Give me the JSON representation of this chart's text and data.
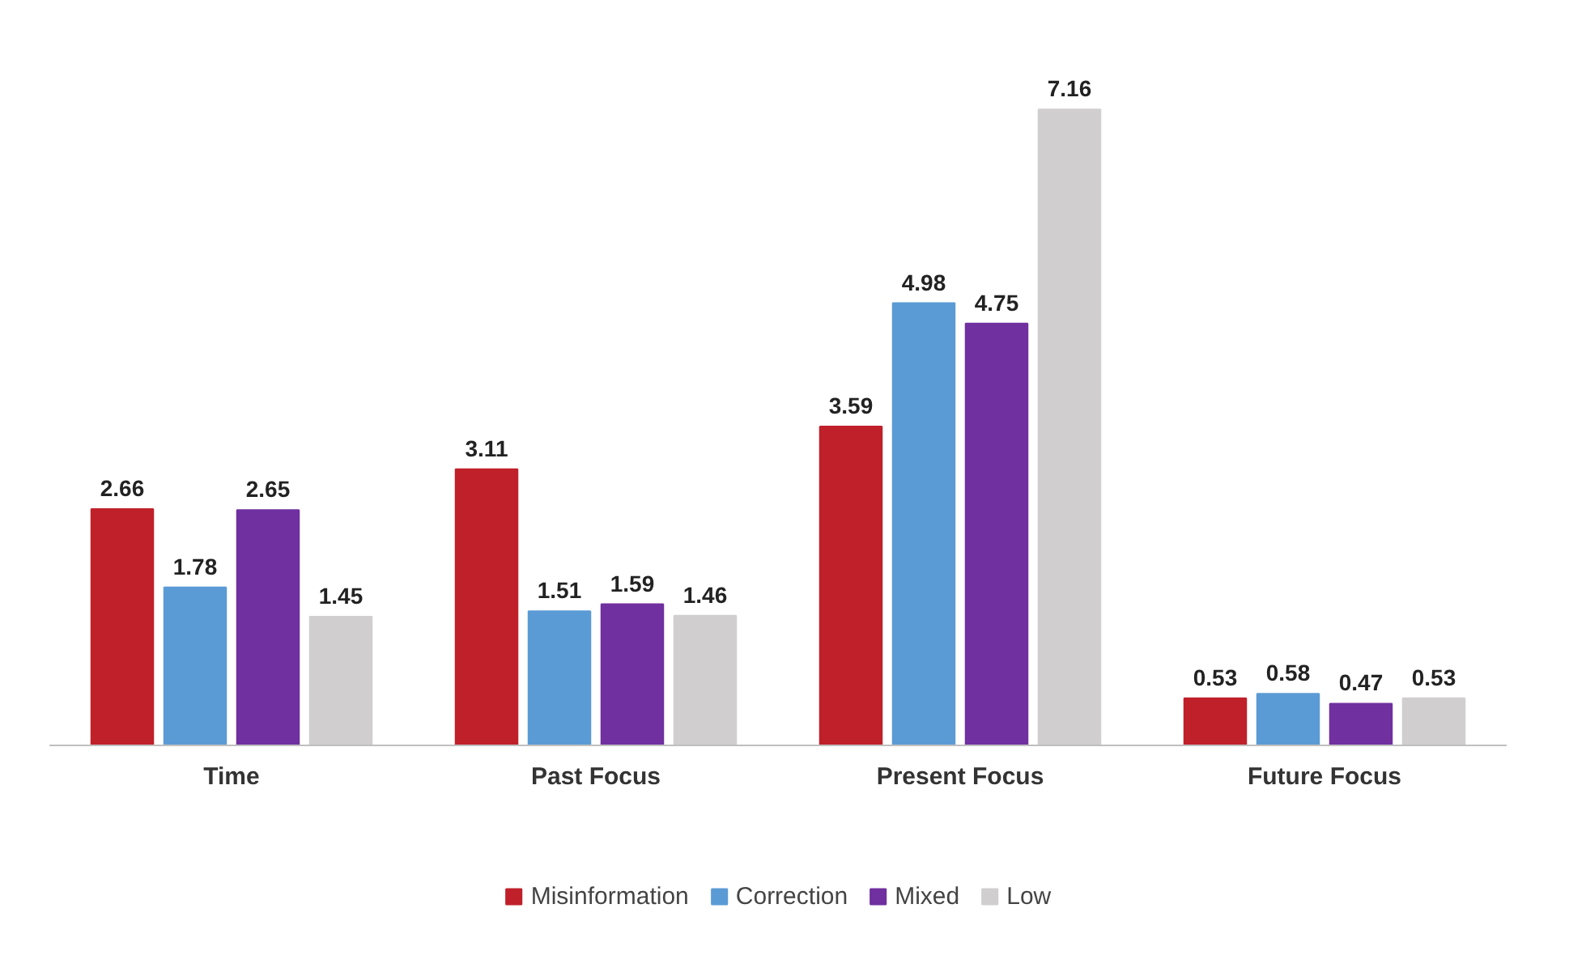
{
  "chart_data": {
    "type": "bar",
    "categories": [
      "Time",
      "Past Focus",
      "Present Focus",
      "Future Focus"
    ],
    "series": [
      {
        "name": "Misinformation",
        "color": "#c0202a",
        "values": [
          2.66,
          3.11,
          3.59,
          0.53
        ]
      },
      {
        "name": "Correction",
        "color": "#5b9bd5",
        "values": [
          1.78,
          1.51,
          4.98,
          0.58
        ]
      },
      {
        "name": "Mixed",
        "color": "#7030a0",
        "values": [
          2.65,
          1.59,
          4.75,
          0.47
        ]
      },
      {
        "name": "Low",
        "color": "#d0cece",
        "values": [
          1.45,
          1.46,
          7.16,
          0.53
        ]
      }
    ],
    "data_labels": true,
    "grid": false,
    "legend": "bottom"
  }
}
